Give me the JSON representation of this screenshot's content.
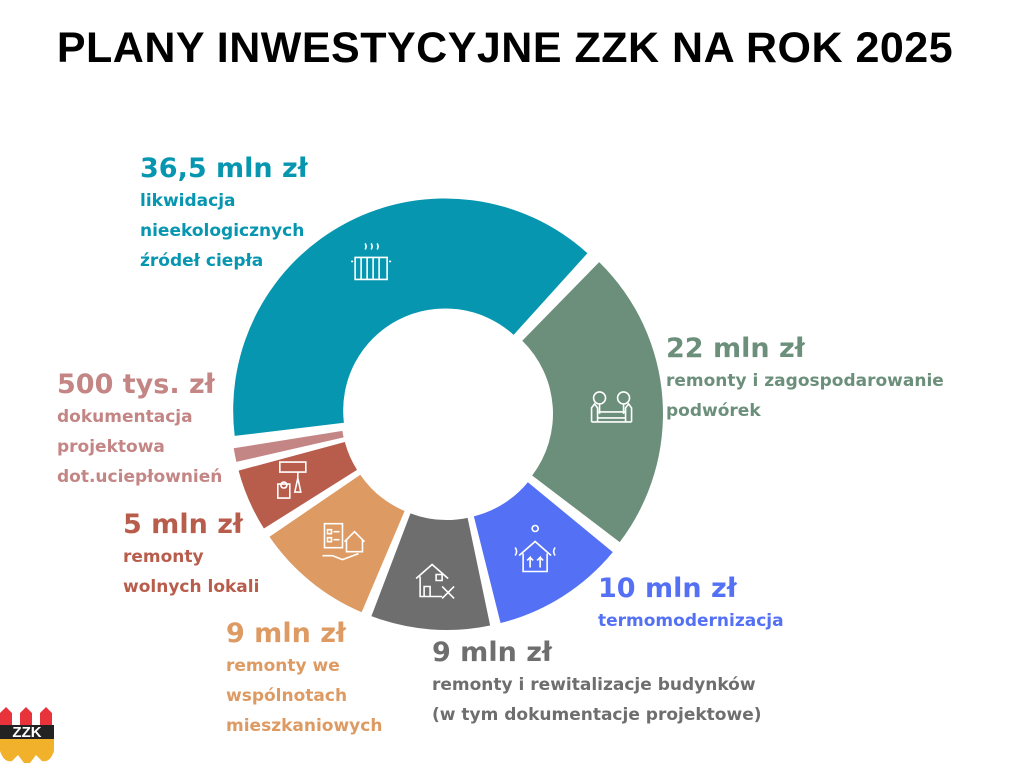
{
  "title": "PLANY INWESTYCYJNE ZZK NA ROK 2025",
  "chart_data": {
    "type": "pie",
    "variant": "donut",
    "unit": "mln zł",
    "slices": [
      {
        "value": 36.5,
        "value_label": "36,5 mln zł",
        "description": "likwidacja\nnieekologicznych\nźródeł ciepła",
        "color": "#0796b0",
        "icon": "radiator-icon"
      },
      {
        "value": 22,
        "value_label": "22 mln zł",
        "description": "remonty i zagospodarowanie\npodwórek",
        "color": "#6b8f7a",
        "icon": "trees-fence-icon"
      },
      {
        "value": 10,
        "value_label": "10 mln zł",
        "description": "termomodernizacja",
        "color": "#5470f5",
        "icon": "thermal-house-icon"
      },
      {
        "value": 9,
        "value_label": "9 mln zł",
        "description": "remonty i rewitalizacje budynków\n(w tym dokumentacje projektowe)",
        "color": "#6e6e6e",
        "icon": "house-tools-icon"
      },
      {
        "value": 9,
        "value_label": "9 mln zł",
        "description": "remonty we\nwspólnotach\nmieszkaniowych",
        "color": "#dd9a62",
        "icon": "checklist-house-hand-icon"
      },
      {
        "value": 5,
        "value_label": "5 mln zł",
        "description": "remonty\nwolnych lokali",
        "color": "#b85c4c",
        "icon": "paint-roller-bucket-icon"
      },
      {
        "value": 0.5,
        "value_label": "500 tys. zł",
        "description": "dokumentacja\nprojektowa\ndot.uciepłownień",
        "color": "#c48585",
        "icon": ""
      }
    ]
  },
  "logo": {
    "text": "ZZK",
    "colors": [
      "#e8333a",
      "#222222",
      "#f2b12b"
    ]
  }
}
